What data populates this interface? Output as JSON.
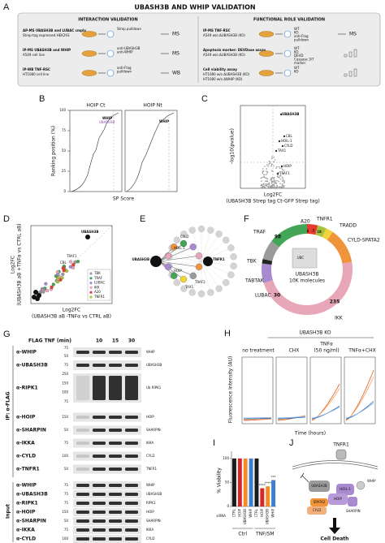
{
  "panel_a": {
    "label": "A",
    "title": "UBASH3B AND WHIP VALIDATION",
    "left": {
      "heading": "INTERACTION VALIDATION",
      "rows": [
        {
          "lines": [
            "AP-MS UBASH3B and LUBAC cmplx",
            "Strep-tag expressed HEK293"
          ],
          "icon_labels": [
            "Strep pulldown"
          ],
          "readout": "MS"
        },
        {
          "lines": [
            "IP-MS UBASH3B and WHIP",
            "A549 cell line"
          ],
          "icon_labels": [
            "anti-UBASH3B",
            "anti-WHIP"
          ],
          "readout": "MS"
        },
        {
          "lines": [
            "IP-WB TNF-RSC",
            "HT1080 cell line"
          ],
          "icon_labels": [
            "anti-Flag",
            "pulldown"
          ],
          "readout": "WB"
        }
      ]
    },
    "right": {
      "heading": "FUNCTIONAL ROLE VALIDATION",
      "rows": [
        {
          "lines": [
            "IP-MS TNF-RSC",
            "A549 w/o ΔUBASH3B (KO)"
          ],
          "icon_labels": [
            "WT",
            "KO",
            "anti-Flag",
            "pulldown"
          ],
          "readout": "MS"
        },
        {
          "lines": [
            "Apoptosis marker: DEVDase assay",
            "A549 w/o ΔUBASH3B (KO)"
          ],
          "icon_labels": [
            "WT",
            "KO",
            "DEVD",
            "Caspase 3/7",
            "marker"
          ]
        },
        {
          "lines": [
            "Cell viability assay",
            "HT1080 w/o ΔUBASH3B (KO)",
            "HT1080 w/o ΔWHIP (KO)"
          ],
          "icon_labels": [
            "WT",
            "KO"
          ]
        }
      ]
    }
  },
  "panel_b": {
    "label": "B",
    "subtitles": [
      "HOIP Ct",
      "HOIP Nt"
    ],
    "ylabel": "Ranking position (%)",
    "xlabel": "SP Score",
    "ylim": [
      0,
      100
    ],
    "yticks": [
      0,
      25,
      50,
      75,
      100
    ],
    "annotations": [
      "WHIP",
      "UBASH3B",
      "WHIP"
    ]
  },
  "panel_c": {
    "label": "C",
    "ylabel": "-log10(pvalue)",
    "xlabel": [
      "Log2FC",
      "(UBASH3B Strep tag Ct-GFP Strep tag)"
    ],
    "annotations": [
      "UBASH3B",
      "CBL",
      "HOIL-1",
      "CYLD",
      "TAX1",
      "HOIP",
      "TRAF1"
    ]
  },
  "panel_d": {
    "label": "D",
    "ylabel": [
      "Log2FC",
      "(UBASH3B aB +TNFα vs CTRL aB)"
    ],
    "xlabel": [
      "Log2FC",
      "(UBASH3B aB -TNFα vs CTRL aB)"
    ],
    "annotations": [
      "UBASH3B",
      "TRAF1",
      "CBL"
    ],
    "legend": [
      "TBK",
      "TRAF",
      "LUBAC",
      "IKK",
      "A20",
      "TNFR1"
    ]
  },
  "panel_e": {
    "label": "E",
    "nodes": [
      "UBASH3B",
      "TNFR1",
      "CYLD",
      "TRAF2",
      "TAX1",
      "HOIL-1",
      "HOIP"
    ]
  },
  "panel_f": {
    "label": "F",
    "segments": [
      "A20",
      "TNFR1",
      "TRADD",
      "CYLD-SPATA2",
      "TRAF",
      "TBK",
      "TABTAK",
      "LUBAC",
      "IKK"
    ],
    "counts": [
      "98",
      "6",
      "7",
      "18",
      "30",
      "235"
    ],
    "center": [
      "UBC",
      "UBASH3B",
      "10K molecules"
    ]
  },
  "panel_g": {
    "label": "G",
    "header": "FLAG TNF (min)",
    "timepoints": [
      null,
      "10",
      "15",
      "30"
    ],
    "sections": [
      "IP: α-FLAG",
      "Input"
    ],
    "ip_rows": [
      {
        "antibody": "α-WHIP",
        "mw": [
          "75",
          "50"
        ],
        "band": "WHIP"
      },
      {
        "antibody": "α-UBASH3B",
        "mw": [
          "75"
        ],
        "band": "UBASH3B"
      },
      {
        "antibody": "α-RIPK1",
        "mw": [
          "250",
          "150",
          "100",
          "75"
        ],
        "band": "Ub RIPK1"
      },
      {
        "antibody": "α-HOIP",
        "mw": [
          "150"
        ],
        "band": "HOIP"
      },
      {
        "antibody": "α-SHARPIN",
        "mw": [
          "50"
        ],
        "band": "SHARPIN"
      },
      {
        "antibody": "α-IKKA",
        "mw": [
          "75"
        ],
        "band": "IKKA"
      },
      {
        "antibody": "α-CYLD",
        "mw": [
          "100"
        ],
        "band": "CYLD"
      },
      {
        "antibody": "α-TNFR1",
        "mw": [
          "50"
        ],
        "band": "TNFR1"
      }
    ],
    "input_rows": [
      {
        "antibody": "α-WHIP",
        "mw": [
          "75"
        ],
        "band": "WHIP"
      },
      {
        "antibody": "α-UBASH3B",
        "mw": [
          "75"
        ],
        "band": "UBASH3B"
      },
      {
        "antibody": "α-RIPK1",
        "mw": [
          "75"
        ],
        "band": "RIPK1"
      },
      {
        "antibody": "α-HOIP",
        "mw": [
          "150"
        ],
        "band": "HOIP"
      },
      {
        "antibody": "α-SHARPIN",
        "mw": [
          "50"
        ],
        "band": "SHARPIN"
      },
      {
        "antibody": "α-IKKA",
        "mw": [
          "75"
        ],
        "band": "IKKA"
      },
      {
        "antibody": "α-CYLD",
        "mw": [
          "100"
        ],
        "band": "CYLD"
      }
    ]
  },
  "panel_h": {
    "label": "H",
    "title": "UBASH3B KO",
    "conditions": [
      "no treatment",
      "CHX",
      "TNFα",
      "(50 ng/ml)",
      "TNFα+CHX"
    ],
    "ylabel": "Fluorescence Intensity (AU)",
    "xlabel": "Time (hours)"
  },
  "panel_i": {
    "label": "I",
    "type": "bar",
    "ylabel": "% Viability",
    "ylim": [
      0,
      115
    ],
    "yticks": [
      0,
      50,
      100
    ],
    "categories": [
      "CTRL",
      "HOIP",
      "UBASH3B",
      "WHIP",
      "CTRL",
      "HOIP",
      "UBASH3B",
      "WHIP"
    ],
    "values": [
      100,
      100,
      100,
      100,
      100,
      38,
      42,
      55
    ],
    "colors": [
      "#1a1a1a",
      "#d62728",
      "#f08c28",
      "#3b7fd0",
      "#1a1a1a",
      "#d62728",
      "#f08c28",
      "#3b7fd0"
    ],
    "significance": [
      null,
      null,
      null,
      null,
      null,
      "****",
      "****",
      "***"
    ],
    "axis_title": "siRNA",
    "groups": [
      "Ctrl",
      "TNF/SM"
    ]
  },
  "panel_j": {
    "label": "J",
    "nodes": [
      "TNFR1",
      "UBASH3B",
      "HOIL-1",
      "HOIP",
      "WHIP",
      "SPATA2",
      "CYLD",
      "SHARPIN"
    ],
    "outcome": "Cell Death"
  }
}
